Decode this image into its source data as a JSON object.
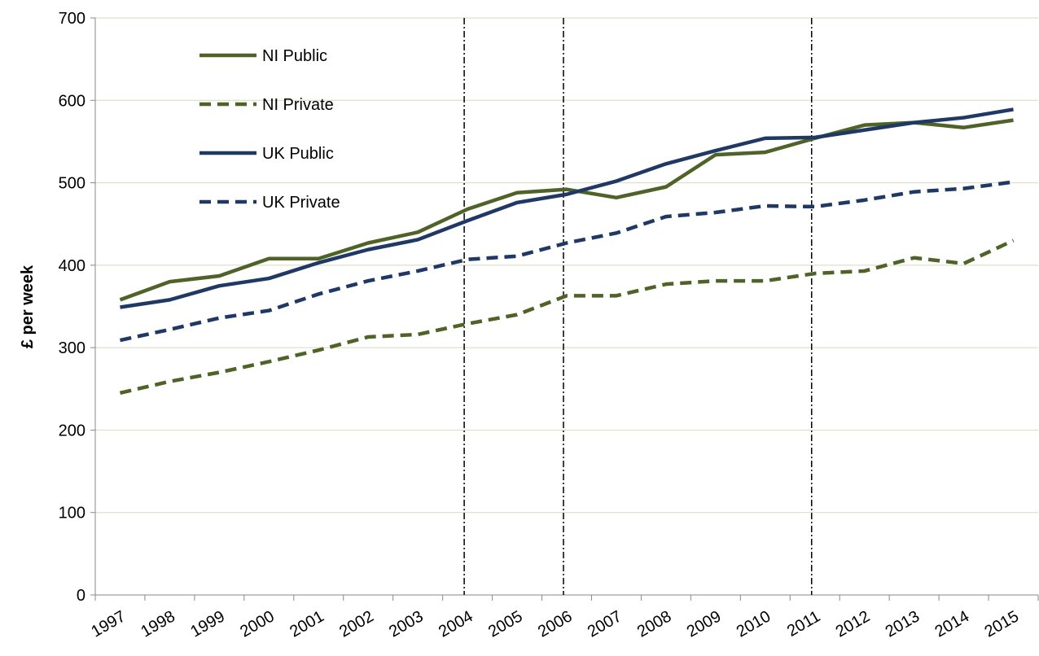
{
  "chart_data": {
    "type": "line",
    "y_label": "£ per week",
    "categories": [
      "1997",
      "1998",
      "1999",
      "2000",
      "2001",
      "2002",
      "2003",
      "2004",
      "2005",
      "2006",
      "2007",
      "2008",
      "2009",
      "2010",
      "2011",
      "2012",
      "2013",
      "2014",
      "2015"
    ],
    "series": [
      {
        "name": "NI Public",
        "color": "#4f6228",
        "dashed": false,
        "values": [
          358,
          380,
          387,
          408,
          408,
          427,
          440,
          468,
          488,
          492,
          482,
          495,
          534,
          537,
          554,
          570,
          573,
          567,
          576
        ]
      },
      {
        "name": "NI Private",
        "color": "#4f6228",
        "dashed": true,
        "values": [
          245,
          259,
          270,
          283,
          297,
          313,
          316,
          329,
          340,
          363,
          363,
          377,
          381,
          381,
          390,
          393,
          409,
          402,
          430
        ]
      },
      {
        "name": "UK Public",
        "color": "#1f3864",
        "dashed": false,
        "values": [
          349,
          358,
          375,
          384,
          403,
          419,
          431,
          454,
          476,
          486,
          502,
          523,
          539,
          554,
          555,
          564,
          573,
          579,
          589
        ]
      },
      {
        "name": "UK Private",
        "color": "#1f3864",
        "dashed": true,
        "values": [
          309,
          322,
          336,
          345,
          365,
          381,
          393,
          407,
          411,
          427,
          439,
          459,
          464,
          472,
          471,
          479,
          489,
          493,
          501
        ]
      }
    ],
    "reference_lines": [
      "2004",
      "2006",
      "2011"
    ],
    "ylim": [
      0,
      700
    ],
    "yticks": [
      0,
      100,
      200,
      300,
      400,
      500,
      600,
      700
    ],
    "grid": true,
    "legend": "upper-left"
  }
}
